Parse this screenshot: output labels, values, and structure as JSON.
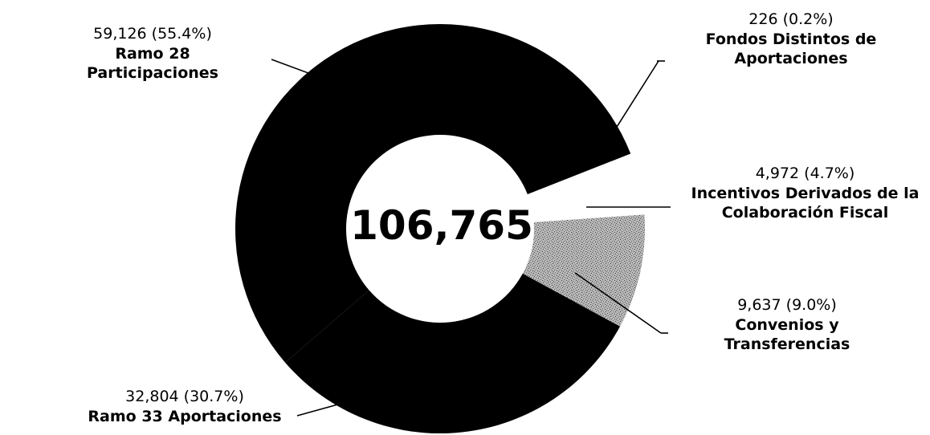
{
  "chart_data": {
    "type": "pie",
    "title": "",
    "total_label": "106,765",
    "slices": [
      {
        "name": "Ramo 28 Participaciones",
        "value": 59126,
        "value_label": "59,126",
        "pct_label": "(55.4%)",
        "color": "#000000"
      },
      {
        "name": "Fondos Distintos de Aportaciones",
        "value": 226,
        "value_label": "226",
        "pct_label": "(0.2%)",
        "color": "#ffffff"
      },
      {
        "name": "Incentivos Derivados de la Colaboración Fiscal",
        "value": 4972,
        "value_label": "4,972",
        "pct_label": "(4.7%)",
        "color": "#ffffff"
      },
      {
        "name": "Convenios y Transferencias",
        "value": 9637,
        "value_label": "9,637",
        "pct_label": "(9.0%)",
        "color": "#9a9a9a"
      },
      {
        "name": "Ramo 33 Aportaciones",
        "value": 32804,
        "value_label": "32,804",
        "pct_label": "(30.7%)",
        "color": "#000000"
      }
    ]
  }
}
